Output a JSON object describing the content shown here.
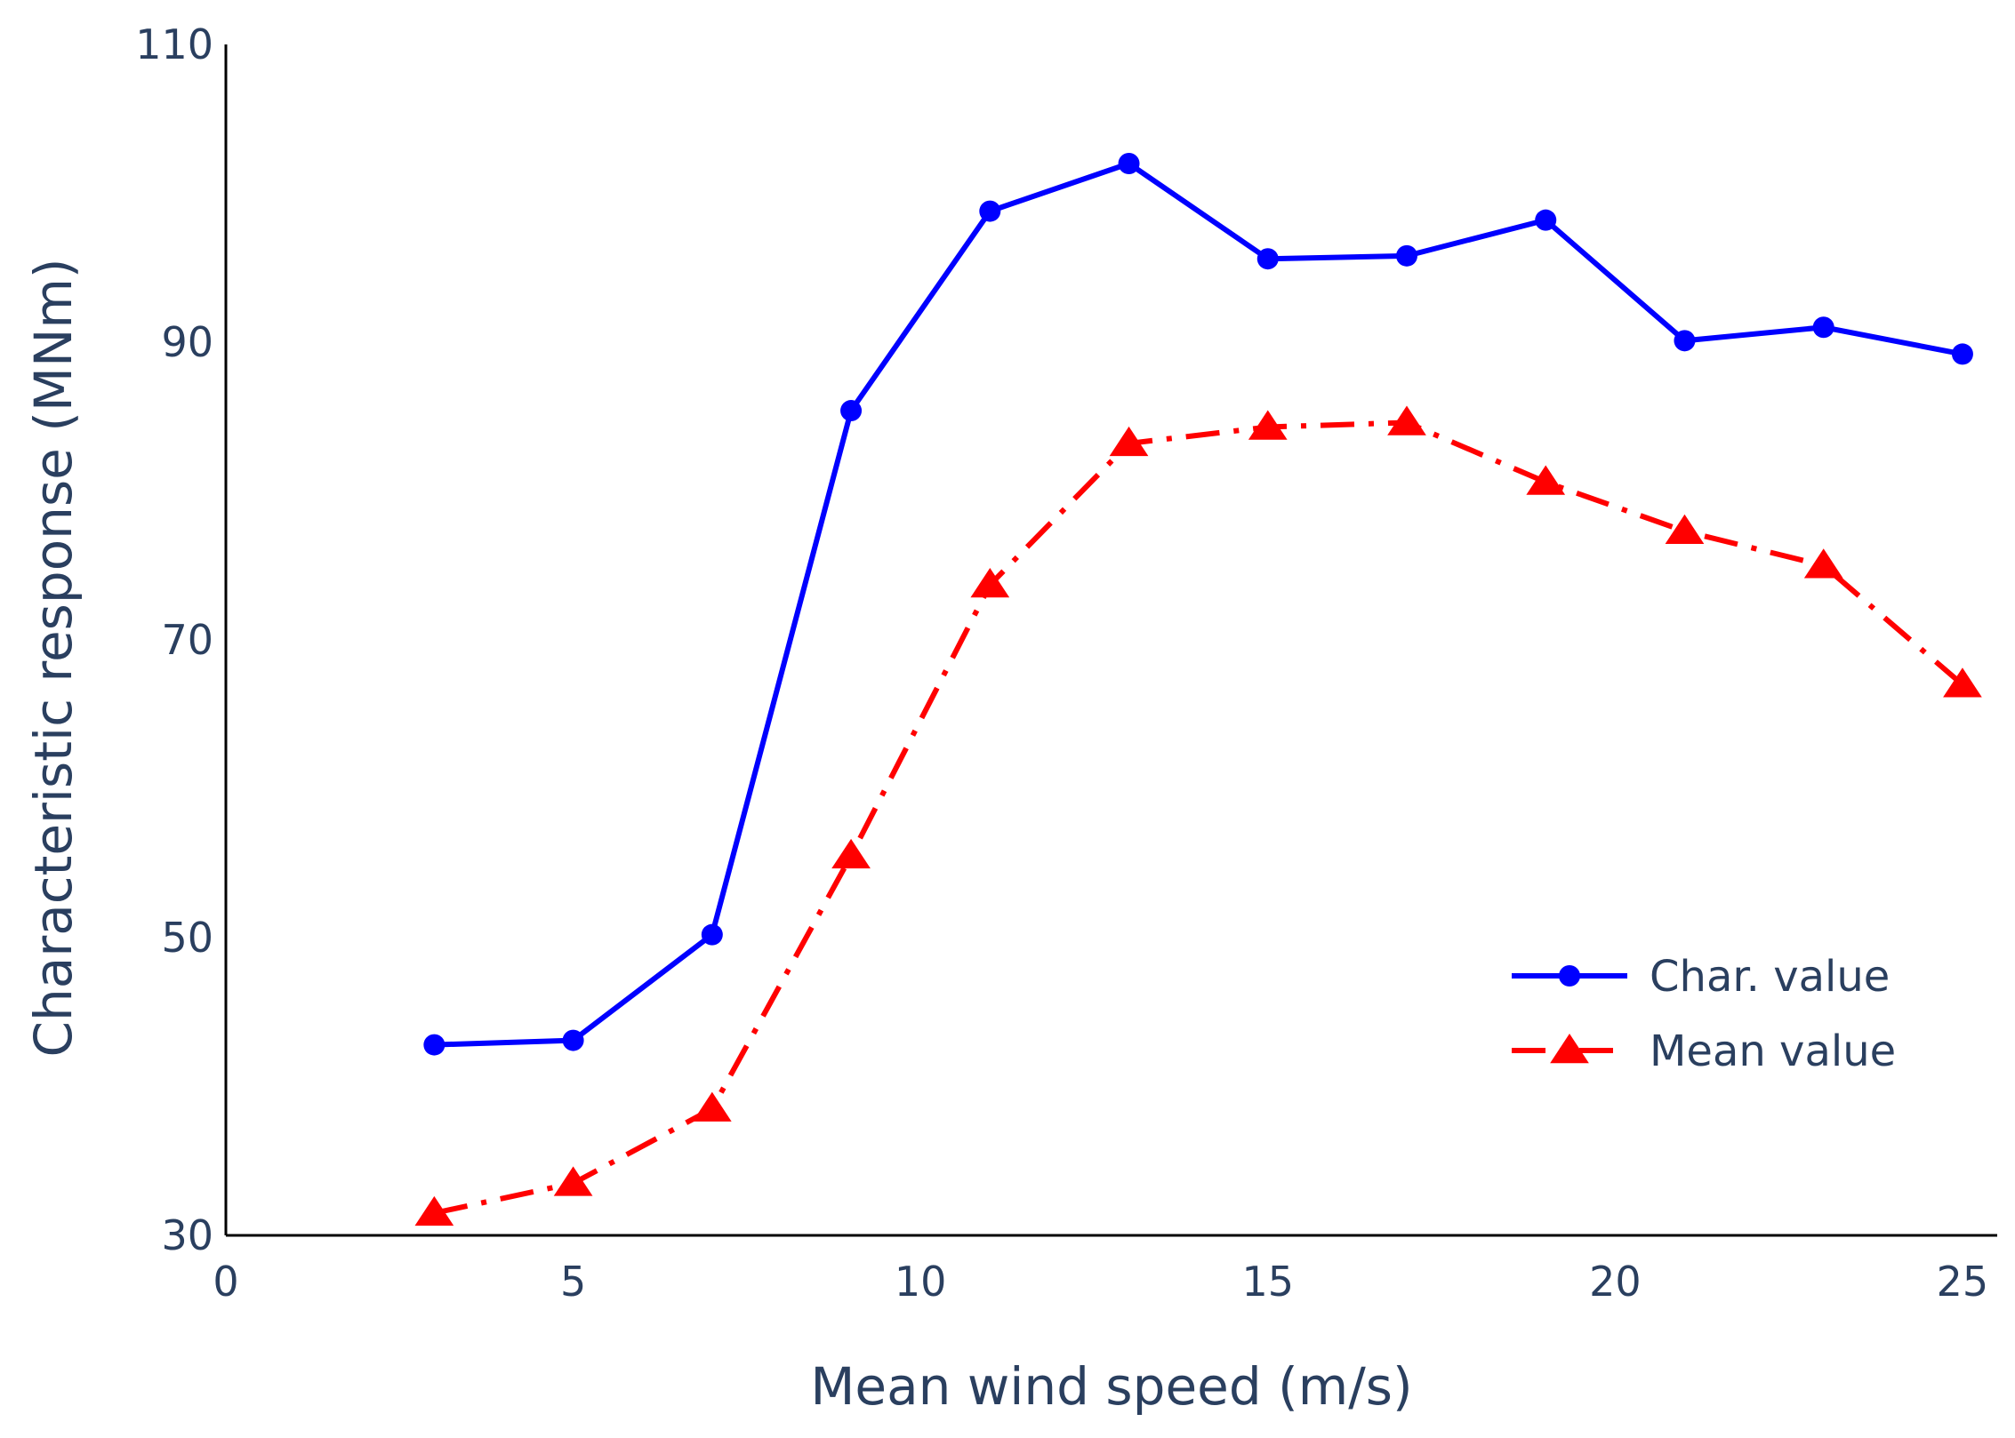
{
  "chart_data": {
    "type": "line",
    "title": "",
    "xlabel": "Mean wind speed (m/s)",
    "ylabel": "Characteristic response (MNm)",
    "xlim": [
      0,
      25.5
    ],
    "ylim": [
      30,
      110
    ],
    "xticks": [
      0,
      5,
      10,
      15,
      20,
      25
    ],
    "yticks": [
      30,
      50,
      70,
      90,
      110
    ],
    "grid": false,
    "legend_position": "bottom-right",
    "x": [
      3,
      5,
      7,
      9,
      11,
      13,
      15,
      17,
      19,
      21,
      23,
      25
    ],
    "series": [
      {
        "name": "Char. value",
        "color": "#0000ff",
        "marker": "circle",
        "line_style": "solid",
        "values": [
          42.8,
          43.1,
          50.2,
          85.4,
          98.8,
          102.0,
          95.6,
          95.8,
          98.2,
          90.1,
          91.0,
          89.2
        ]
      },
      {
        "name": "Mean value",
        "color": "#ff0000",
        "marker": "triangle-up",
        "line_style": "dashdot",
        "values": [
          31.5,
          33.5,
          38.5,
          55.5,
          73.7,
          83.2,
          84.3,
          84.6,
          80.6,
          77.3,
          75.0,
          67.0
        ]
      }
    ]
  }
}
